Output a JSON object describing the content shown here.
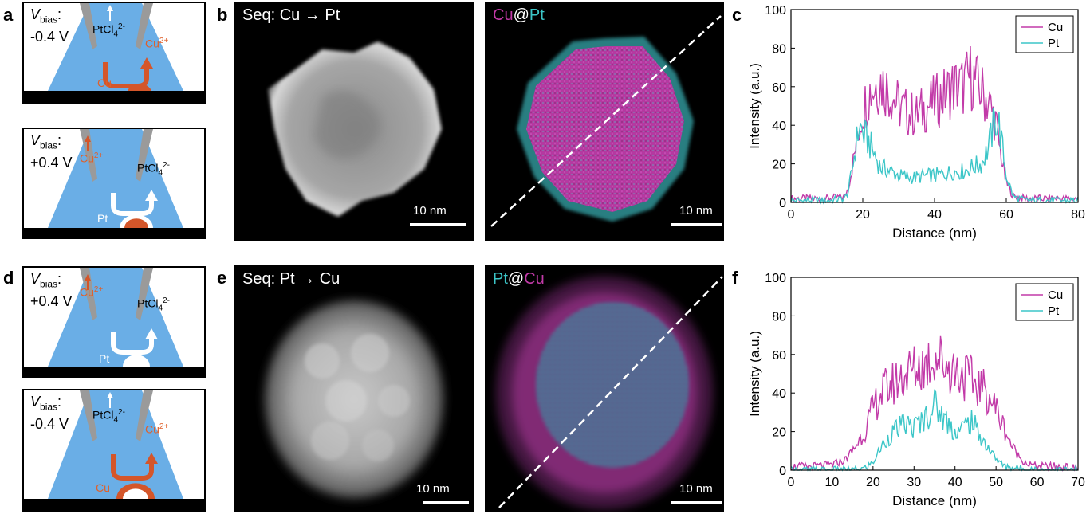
{
  "panels": {
    "a": "a",
    "b": "b",
    "c": "c",
    "d": "d",
    "e": "e",
    "f": "f"
  },
  "schematics": [
    {
      "v": "V",
      "sub": "bias",
      "colon": ":",
      "val": "-0.4 V",
      "left_ion": "PtCl",
      "left_sub": "4",
      "left_sup": "2-",
      "right_ion": "Cu",
      "right_sup": "2+",
      "particle": "Cu"
    },
    {
      "v": "V",
      "sub": "bias",
      "colon": ":",
      "val": "+0.4 V",
      "left_ion": "Cu",
      "left_sup": "2+",
      "right_ion": "PtCl",
      "right_sub": "4",
      "right_sup": "2-",
      "particle": "Pt"
    },
    {
      "v": "V",
      "sub": "bias",
      "colon": ":",
      "val": "+0.4 V",
      "left_ion": "Cu",
      "left_sup": "2+",
      "right_ion": "PtCl",
      "right_sub": "4",
      "right_sup": "2-",
      "particle": "Pt"
    },
    {
      "v": "V",
      "sub": "bias",
      "colon": ":",
      "val": "-0.4 V",
      "left_ion": "PtCl",
      "left_sub": "4",
      "left_sup": "2-",
      "right_ion": "Cu",
      "right_sup": "2+",
      "particle": "Cu"
    }
  ],
  "micrographs": {
    "b_title": "Seq: Cu → Pt",
    "e_title": "Seq: Pt → Cu",
    "b_map_first": "Cu",
    "b_map_at": "@",
    "b_map_second": "Pt",
    "e_map_first": "Pt",
    "e_map_at": "@",
    "e_map_second": "Cu",
    "scalebar": "10 nm"
  },
  "colors": {
    "cu": "#c23aa8",
    "pt": "#3cc6c8",
    "liquid": "#6aaee6",
    "copper": "#d4562a",
    "tip": "#9a9a9a"
  },
  "chart_data": [
    {
      "type": "line",
      "xlabel": "Distance (nm)",
      "ylabel": "Intensity (a.u.)",
      "xlim": [
        0,
        80
      ],
      "ylim": [
        0,
        100
      ],
      "xticks": [
        0,
        20,
        40,
        60,
        80
      ],
      "yticks": [
        0,
        20,
        40,
        60,
        80,
        100
      ],
      "legend": "top-right",
      "series": [
        {
          "name": "Cu",
          "color": "#c23aa8",
          "x": [
            0,
            5,
            10,
            15,
            16,
            18,
            20,
            22,
            25,
            28,
            30,
            33,
            35,
            38,
            40,
            43,
            45,
            48,
            50,
            53,
            55,
            57,
            58,
            60,
            62,
            65,
            70,
            75,
            80
          ],
          "y": [
            2,
            2,
            2,
            3,
            8,
            28,
            48,
            58,
            63,
            56,
            50,
            46,
            45,
            50,
            52,
            56,
            60,
            60,
            66,
            58,
            52,
            42,
            30,
            10,
            3,
            2,
            2,
            2,
            2
          ]
        },
        {
          "name": "Pt",
          "color": "#3cc6c8",
          "x": [
            0,
            5,
            10,
            15,
            16,
            18,
            19,
            20,
            22,
            25,
            28,
            30,
            33,
            35,
            38,
            40,
            43,
            45,
            48,
            50,
            53,
            55,
            56,
            57,
            58,
            60,
            62,
            65,
            70,
            75,
            80
          ],
          "y": [
            1,
            1,
            1,
            2,
            6,
            28,
            40,
            36,
            30,
            18,
            16,
            14,
            13,
            13,
            14,
            14,
            15,
            16,
            16,
            18,
            20,
            28,
            36,
            44,
            40,
            14,
            3,
            1,
            1,
            1,
            1
          ]
        }
      ]
    },
    {
      "type": "line",
      "xlabel": "Distance (nm)",
      "ylabel": "Intensity (a.u.)",
      "xlim": [
        0,
        70
      ],
      "ylim": [
        0,
        100
      ],
      "xticks": [
        0,
        10,
        20,
        30,
        40,
        50,
        60,
        70
      ],
      "yticks": [
        0,
        20,
        40,
        60,
        80,
        100
      ],
      "legend": "top-right",
      "series": [
        {
          "name": "Cu",
          "color": "#c23aa8",
          "x": [
            0,
            5,
            10,
            13,
            15,
            18,
            20,
            22,
            25,
            28,
            30,
            33,
            35,
            37,
            40,
            43,
            45,
            48,
            50,
            52,
            54,
            56,
            58,
            60,
            65,
            70
          ],
          "y": [
            2,
            2,
            3,
            5,
            10,
            20,
            32,
            40,
            45,
            50,
            52,
            55,
            60,
            56,
            52,
            48,
            45,
            40,
            32,
            22,
            12,
            6,
            3,
            2,
            2,
            1
          ]
        },
        {
          "name": "Pt",
          "color": "#3cc6c8",
          "x": [
            0,
            5,
            10,
            15,
            18,
            20,
            22,
            25,
            28,
            30,
            33,
            35,
            37,
            40,
            42,
            44,
            46,
            48,
            50,
            52,
            55,
            60,
            65,
            70
          ],
          "y": [
            0,
            0,
            0,
            0,
            1,
            4,
            12,
            20,
            24,
            22,
            28,
            34,
            28,
            20,
            22,
            26,
            18,
            12,
            6,
            2,
            1,
            0,
            0,
            0
          ]
        }
      ]
    }
  ]
}
